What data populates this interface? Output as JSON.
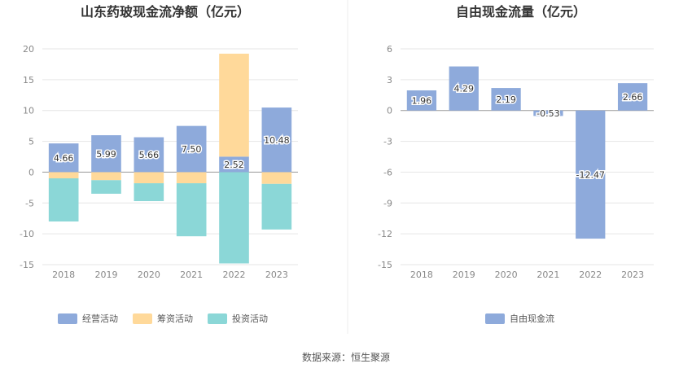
{
  "chart_data": [
    {
      "type": "bar",
      "stacked": true,
      "title": "山东药玻现金流净额（亿元）",
      "categories": [
        "2018",
        "2019",
        "2020",
        "2021",
        "2022",
        "2023"
      ],
      "ylim": [
        -15,
        20
      ],
      "yticks": [
        "20",
        "15",
        "10",
        "5",
        "0",
        "-5",
        "-10",
        "-15"
      ],
      "grid": true,
      "legend_position": "bottom",
      "series": [
        {
          "name": "经营活动",
          "color": "#8eaadb",
          "values": [
            4.66,
            5.99,
            5.66,
            7.5,
            2.52,
            10.48
          ],
          "labels": [
            "4.66",
            "5.99",
            "5.66",
            "7.50",
            "2.52",
            "10.48"
          ]
        },
        {
          "name": "筹资活动",
          "color": "#ffd99a",
          "values": [
            -1.0,
            -1.3,
            -1.8,
            -1.8,
            16.7,
            -1.9
          ]
        },
        {
          "name": "投资活动",
          "color": "#8bd7d7",
          "values": [
            -7.0,
            -2.2,
            -2.9,
            -8.6,
            -14.8,
            -7.4
          ]
        }
      ]
    },
    {
      "type": "bar",
      "title": "自由现金流量（亿元）",
      "categories": [
        "2018",
        "2019",
        "2020",
        "2021",
        "2022",
        "2023"
      ],
      "ylim": [
        -15,
        6
      ],
      "yticks": [
        "6",
        "3",
        "0",
        "-3",
        "-6",
        "-9",
        "-12",
        "-15"
      ],
      "grid": true,
      "legend_position": "bottom",
      "series": [
        {
          "name": "自由现金流",
          "color": "#8eaadb",
          "values": [
            1.96,
            4.29,
            2.19,
            -0.53,
            -12.47,
            2.66
          ],
          "labels": [
            "1.96",
            "4.29",
            "2.19",
            "-0.53",
            "-12.47",
            "2.66"
          ]
        }
      ]
    }
  ],
  "source": "数据来源：恒生聚源"
}
